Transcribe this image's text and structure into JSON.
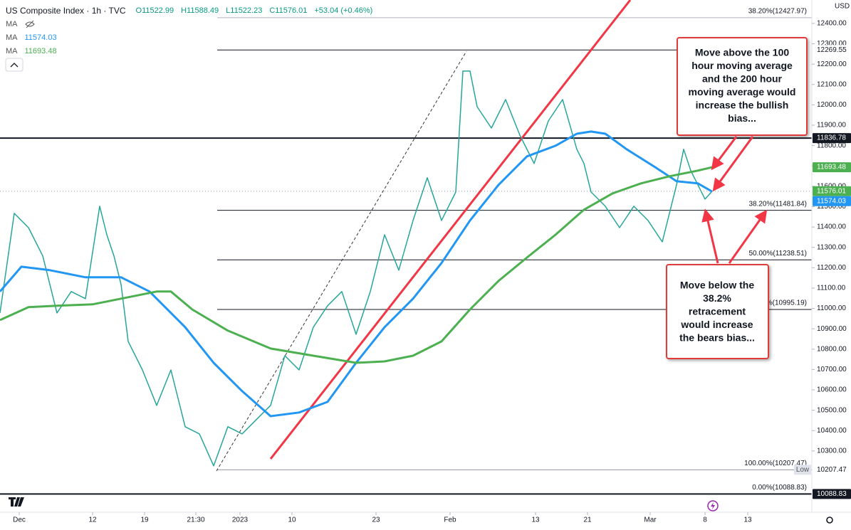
{
  "chart_data": {
    "type": "line",
    "title": "US Composite Index · 1h · TVC",
    "ohlc": [
      "O11522.99",
      "H11588.49",
      "L11522.23",
      "C11576.01",
      "+53.04 (+0.46%)"
    ],
    "currency": "USD",
    "legend": [
      {
        "name": "MA"
      },
      {
        "name": "MA",
        "value": 11574.03,
        "color": "#2196f3"
      },
      {
        "name": "MA",
        "value": 11693.48,
        "color": "#4caf50"
      }
    ],
    "xlim": [
      0,
      114
    ],
    "xticks": [
      {
        "value": 2.7,
        "label": "Dec"
      },
      {
        "value": 13,
        "label": "12"
      },
      {
        "value": 20.3,
        "label": "19"
      },
      {
        "value": 27.5,
        "label": "21:30"
      },
      {
        "value": 33.7,
        "label": "2023"
      },
      {
        "value": 41,
        "label": "10"
      },
      {
        "value": 52.8,
        "label": "23"
      },
      {
        "value": 63.2,
        "label": "Feb"
      },
      {
        "value": 75.2,
        "label": "13"
      },
      {
        "value": 82.5,
        "label": "21"
      },
      {
        "value": 91.3,
        "label": "Mar"
      },
      {
        "value": 99,
        "label": "8"
      },
      {
        "value": 105,
        "label": "13"
      }
    ],
    "ylim": [
      10069,
      12515
    ],
    "yticks": [
      {
        "value": 10300,
        "label": "10300.00"
      },
      {
        "value": 10400,
        "label": "10400.00"
      },
      {
        "value": 10500,
        "label": "10500.00"
      },
      {
        "value": 10600,
        "label": "10600.00"
      },
      {
        "value": 10700,
        "label": "10700.00"
      },
      {
        "value": 10800,
        "label": "10800.00"
      },
      {
        "value": 10900,
        "label": "10900.00"
      },
      {
        "value": 11000,
        "label": "11000.00"
      },
      {
        "value": 11100,
        "label": "11100.00"
      },
      {
        "value": 11200,
        "label": "11200.00"
      },
      {
        "value": 11300,
        "label": "11300.00"
      },
      {
        "value": 11400,
        "label": "11400.00"
      },
      {
        "value": 11500,
        "label": "11500.00"
      },
      {
        "value": 11600,
        "label": "11600.00"
      },
      {
        "value": 11700,
        "label": "11700.00"
      },
      {
        "value": 11800,
        "label": "11800.00"
      },
      {
        "value": 11900,
        "label": "11900.00"
      },
      {
        "value": 12000,
        "label": "12000.00"
      },
      {
        "value": 12100,
        "label": "12100.00"
      },
      {
        "value": 12200,
        "label": "12200.00"
      },
      {
        "value": 12300,
        "label": "12300.00"
      },
      {
        "value": 12400,
        "label": "12400.00"
      }
    ],
    "series": [
      {
        "name": "Price",
        "color": "#26a69a",
        "x": [
          0,
          2,
          4,
          6,
          8,
          10,
          12,
          14,
          15,
          16,
          17,
          18,
          20,
          22,
          24,
          26,
          28,
          30,
          32,
          34,
          36,
          38,
          40,
          42,
          44,
          46,
          48,
          50,
          52,
          54,
          56,
          58,
          60,
          62,
          64,
          65,
          66,
          67,
          69,
          71,
          73,
          75,
          77,
          79,
          81,
          82,
          83,
          85,
          87,
          89,
          91,
          93,
          95,
          96,
          97,
          99,
          100
        ],
        "values": [
          10978,
          11467,
          11397,
          11258,
          10978,
          11083,
          11048,
          11502,
          11362,
          11258,
          11118,
          10838,
          10698,
          10524,
          10698,
          10419,
          10384,
          10227,
          10419,
          10384,
          10454,
          10524,
          10768,
          10698,
          10908,
          11013,
          11083,
          10873,
          11083,
          11362,
          11188,
          11432,
          11642,
          11432,
          11572,
          12166,
          12166,
          11991,
          11886,
          12026,
          11851,
          11712,
          11921,
          12026,
          11782,
          11712,
          11572,
          11502,
          11397,
          11502,
          11432,
          11327,
          11607,
          11782,
          11677,
          11537,
          11576.01
        ]
      },
      {
        "name": "MA",
        "color": "#2196f3",
        "x": [
          0,
          3,
          7,
          12,
          17,
          21,
          26,
          30,
          34,
          38,
          42,
          46,
          50,
          54,
          58,
          62,
          66,
          70,
          74,
          78,
          81,
          83,
          85,
          88,
          92,
          95,
          98,
          100
        ],
        "values": [
          11083,
          11205,
          11188,
          11153,
          11153,
          11083,
          10908,
          10733,
          10594,
          10471,
          10489,
          10541,
          10733,
          10908,
          11048,
          11223,
          11432,
          11607,
          11747,
          11799,
          11858,
          11869,
          11858,
          11782,
          11694,
          11625,
          11614,
          11574.03
        ]
      },
      {
        "name": "MA",
        "color": "#4caf50",
        "x": [
          0,
          4,
          8,
          13,
          18,
          22,
          24,
          27,
          32,
          38,
          44,
          50,
          54,
          58,
          62,
          66,
          70,
          74,
          78,
          82,
          86,
          90,
          94,
          98,
          100
        ],
        "values": [
          10943,
          11006,
          11013,
          11020,
          11055,
          11083,
          11083,
          10995,
          10891,
          10803,
          10768,
          10733,
          10740,
          10768,
          10838,
          10995,
          11135,
          11250,
          11362,
          11485,
          11565,
          11614,
          11649,
          11677,
          11693.48
        ]
      }
    ],
    "levels": [
      {
        "label": "38.20%(12427.97)",
        "value": 12427.97,
        "color": "#b2b5be"
      },
      {
        "value": 12269.55,
        "color": "#131722"
      },
      {
        "value": 11836.78,
        "color": "#131722"
      },
      {
        "label": "38.20%(11481.84)",
        "value": 11481.84,
        "color": "#131722"
      },
      {
        "label": "50.00%(11238.51)",
        "value": 11238.51,
        "color": "#131722"
      },
      {
        "label": "%(10995.19)",
        "value": 10995.19,
        "color": "#131722"
      },
      {
        "label": "100.00%(10207.47)",
        "value": 10207.47,
        "color": "#9598a1"
      },
      {
        "label": "0.00%(10088.83)",
        "value": 10088.83,
        "color": "#131722"
      }
    ],
    "badges": [
      {
        "value": 12269.55,
        "bg": "#ffffff",
        "fg": "#131722"
      },
      {
        "value": 11836.78,
        "bg": "#131722",
        "fg": "#ffffff"
      },
      {
        "value": 11693.48,
        "bg": "#4caf50",
        "fg": "#ffffff"
      },
      {
        "value": 11576.01,
        "bg": "#4caf50",
        "fg": "#ffffff",
        "line": "dotted"
      },
      {
        "value": 11574.03,
        "bg": "#2196f3",
        "fg": "#ffffff"
      },
      {
        "value": 10207.47,
        "bg": "#ffffff",
        "fg": "#131722",
        "tag": "Low"
      },
      {
        "value": 10088.83,
        "bg": "#131722",
        "fg": "#ffffff"
      }
    ],
    "annotations": [
      {
        "lines": [
          "Move above the 100",
          "hour moving average",
          "and the 200 hour",
          "moving average would",
          "increase the bullish",
          "bias..."
        ]
      },
      {
        "lines": [
          "Move below the",
          "38.2%",
          "retracement",
          "would increase",
          "the bears bias..."
        ]
      }
    ]
  }
}
